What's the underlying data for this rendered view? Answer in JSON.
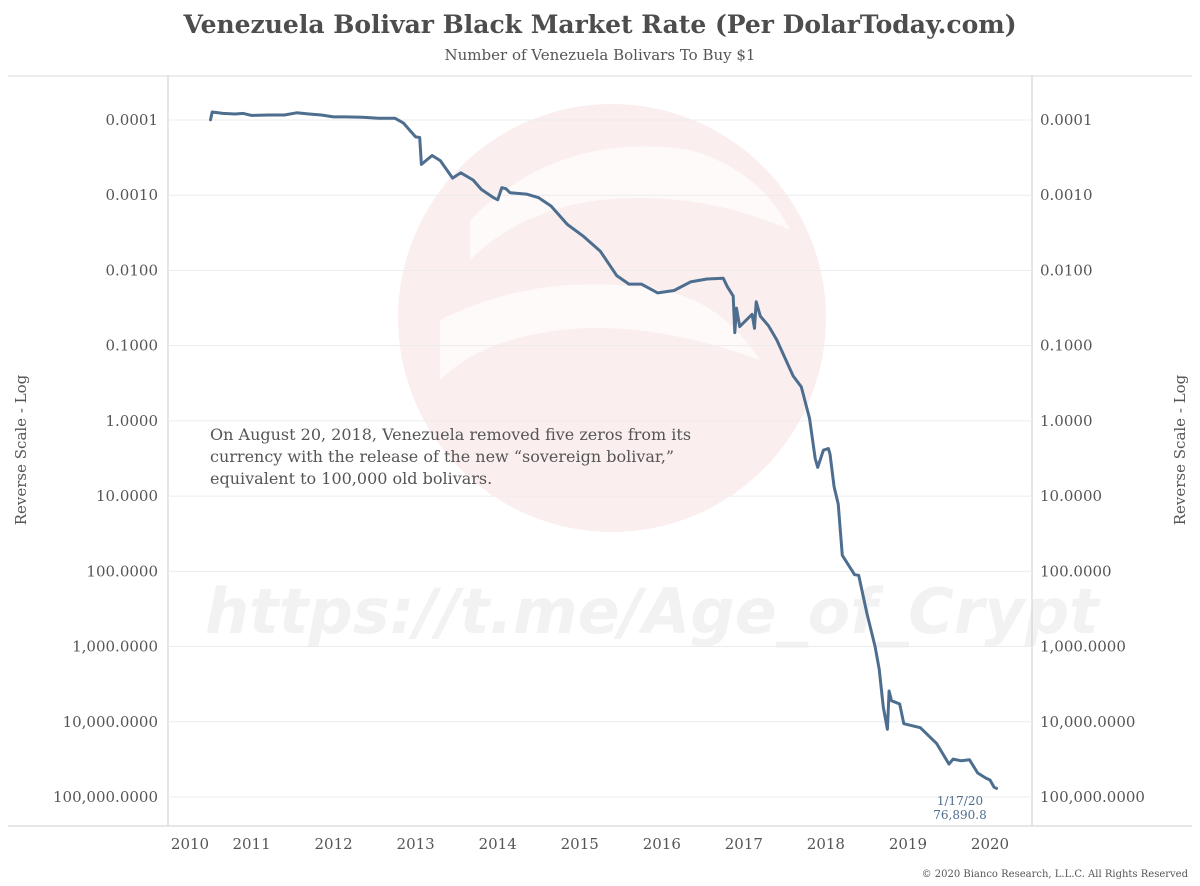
{
  "chart_data": {
    "type": "line",
    "title": "Venezuela Bolivar Black Market Rate (Per DolarToday.com)",
    "subtitle": "Number of Venezuela Bolivars To Buy $1",
    "ylabel_left": "Reverse Scale - Log",
    "ylabel_right": "Reverse Scale - Log",
    "yscale": "log",
    "y_reversed": true,
    "ylim": [
      5e-05,
      150000
    ],
    "xlim": [
      2010.0,
      2020.25
    ],
    "y_ticks": [
      {
        "value": 0.0001,
        "label": "0.0001"
      },
      {
        "value": 0.001,
        "label": "0.0010"
      },
      {
        "value": 0.01,
        "label": "0.0100"
      },
      {
        "value": 0.1,
        "label": "0.1000"
      },
      {
        "value": 1,
        "label": "1.0000"
      },
      {
        "value": 10,
        "label": "10.0000"
      },
      {
        "value": 100,
        "label": "100.0000"
      },
      {
        "value": 1000,
        "label": "1,000.0000"
      },
      {
        "value": 10000,
        "label": "10,000.0000"
      },
      {
        "value": 100000,
        "label": "100,000.0000"
      }
    ],
    "x_ticks": [
      {
        "value": 2010.0,
        "label": "2010"
      },
      {
        "value": 2010.75,
        "label": "2011"
      },
      {
        "value": 2011.75,
        "label": "2012"
      },
      {
        "value": 2012.75,
        "label": "2013"
      },
      {
        "value": 2013.75,
        "label": "2014"
      },
      {
        "value": 2014.75,
        "label": "2015"
      },
      {
        "value": 2015.75,
        "label": "2016"
      },
      {
        "value": 2016.75,
        "label": "2017"
      },
      {
        "value": 2017.75,
        "label": "2018"
      },
      {
        "value": 2018.75,
        "label": "2019"
      },
      {
        "value": 2019.75,
        "label": "2020"
      }
    ],
    "grid": true,
    "series": [
      {
        "color": "#4d6e8f",
        "points": [
          [
            2010.25,
            9.93e-05
          ],
          [
            2010.27,
            7.82e-05
          ],
          [
            2010.4,
            8.18e-05
          ],
          [
            2010.55,
            8.32e-05
          ],
          [
            2010.65,
            8.18e-05
          ],
          [
            2010.75,
            8.69e-05
          ],
          [
            2010.95,
            8.57e-05
          ],
          [
            2011.15,
            8.57e-05
          ],
          [
            2011.3,
            8.03e-05
          ],
          [
            2011.45,
            8.32e-05
          ],
          [
            2011.6,
            8.57e-05
          ],
          [
            2011.75,
            9.09e-05
          ],
          [
            2011.9,
            9.09e-05
          ],
          [
            2012.1,
            9.22e-05
          ],
          [
            2012.3,
            9.48e-05
          ],
          [
            2012.5,
            9.48e-05
          ],
          [
            2012.6,
            0.0001092
          ],
          [
            2012.75,
            0.000168
          ],
          [
            2012.8,
            0.000171
          ],
          [
            2012.82,
            0.000389
          ],
          [
            2012.95,
            0.000296
          ],
          [
            2013.05,
            0.000346
          ],
          [
            2013.2,
            0.000592
          ],
          [
            2013.3,
            0.000503
          ],
          [
            2013.45,
            0.000627
          ],
          [
            2013.55,
            0.000836
          ],
          [
            2013.7,
            0.00108
          ],
          [
            2013.75,
            0.00115
          ],
          [
            2013.8,
            0.000795
          ],
          [
            2013.85,
            0.00082
          ],
          [
            2013.9,
            0.000925
          ],
          [
            2014.1,
            0.000967
          ],
          [
            2014.25,
            0.00108
          ],
          [
            2014.4,
            0.00139
          ],
          [
            2014.6,
            0.00245
          ],
          [
            2014.8,
            0.00355
          ],
          [
            2015.0,
            0.00555
          ],
          [
            2015.2,
            0.0117
          ],
          [
            2015.35,
            0.0152
          ],
          [
            2015.5,
            0.0152
          ],
          [
            2015.7,
            0.0199
          ],
          [
            2015.9,
            0.0185
          ],
          [
            2016.1,
            0.0142
          ],
          [
            2016.3,
            0.013
          ],
          [
            2016.5,
            0.0127
          ],
          [
            2016.55,
            0.0165
          ],
          [
            2016.62,
            0.0219
          ],
          [
            2016.64,
            0.067
          ],
          [
            2016.66,
            0.0317
          ],
          [
            2016.7,
            0.0558
          ],
          [
            2016.85,
            0.0383
          ],
          [
            2016.88,
            0.0588
          ],
          [
            2016.9,
            0.0261
          ],
          [
            2016.95,
            0.0404
          ],
          [
            2017.05,
            0.0544
          ],
          [
            2017.15,
            0.0836
          ],
          [
            2017.35,
            0.252
          ],
          [
            2017.45,
            0.353
          ],
          [
            2017.55,
            0.922
          ],
          [
            2017.62,
            3.16
          ],
          [
            2017.65,
            4.15
          ],
          [
            2017.72,
            2.45
          ],
          [
            2017.78,
            2.33
          ],
          [
            2017.8,
            2.76
          ],
          [
            2017.85,
            7.51
          ],
          [
            2017.9,
            12.7
          ],
          [
            2017.95,
            61.2
          ],
          [
            2018.1,
            111
          ],
          [
            2018.15,
            113
          ],
          [
            2018.25,
            361
          ],
          [
            2018.35,
            1000
          ],
          [
            2018.4,
            2000
          ],
          [
            2018.45,
            6400
          ],
          [
            2018.5,
            12600
          ],
          [
            2018.52,
            3900
          ],
          [
            2018.55,
            5250
          ],
          [
            2018.65,
            5810
          ],
          [
            2018.7,
            10600
          ],
          [
            2018.9,
            12000
          ],
          [
            2019.1,
            19500
          ],
          [
            2019.25,
            36500
          ],
          [
            2019.3,
            31300
          ],
          [
            2019.4,
            33000
          ],
          [
            2019.5,
            32000
          ],
          [
            2019.6,
            48000
          ],
          [
            2019.7,
            56000
          ],
          [
            2019.75,
            59400
          ],
          [
            2019.8,
            74000
          ],
          [
            2019.83,
            76890.8
          ]
        ]
      }
    ],
    "annotations": [
      {
        "line1": "On August 20, 2018, Venezuela removed five zeros from its",
        "line2": "currency with the release of the new “sovereign bolivar,”",
        "line3": "equivalent to 100,000 old bolivars."
      }
    ],
    "end_label": {
      "date": "1/17/20",
      "value": "76,890.8"
    }
  },
  "watermark": "https://t.me/Age_of_Crypt",
  "copyright": "© 2020 Bianco Research, L.L.C. All Rights Reserved"
}
